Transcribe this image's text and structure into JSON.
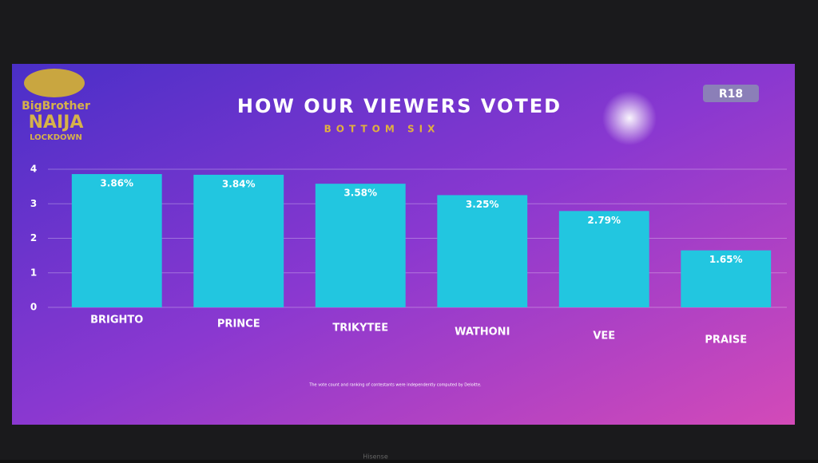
{
  "logo": {
    "line1": "BigBrother",
    "line2": "NAIJA",
    "line3": "LOCKDOWN"
  },
  "badge": "R18",
  "footnote": "The vote count and ranking of contestants were independently computed by Deloitte.",
  "tv_brand": "Hisense",
  "chart_data": {
    "type": "bar",
    "title": "HOW OUR VIEWERS VOTED",
    "subtitle": "BOTTOM SIX",
    "categories": [
      "BRIGHTO",
      "PRINCE",
      "TRIKYTEE",
      "WATHONI",
      "VEE",
      "PRAISE"
    ],
    "values": [
      3.86,
      3.84,
      3.58,
      3.25,
      2.79,
      1.65
    ],
    "value_labels": [
      "3.86%",
      "3.84%",
      "3.58%",
      "3.25%",
      "2.79%",
      "1.65%"
    ],
    "color": "#22c6e0",
    "ylim": [
      0,
      4
    ],
    "yticks": [
      0,
      1,
      2,
      3,
      4
    ],
    "grid": true
  }
}
